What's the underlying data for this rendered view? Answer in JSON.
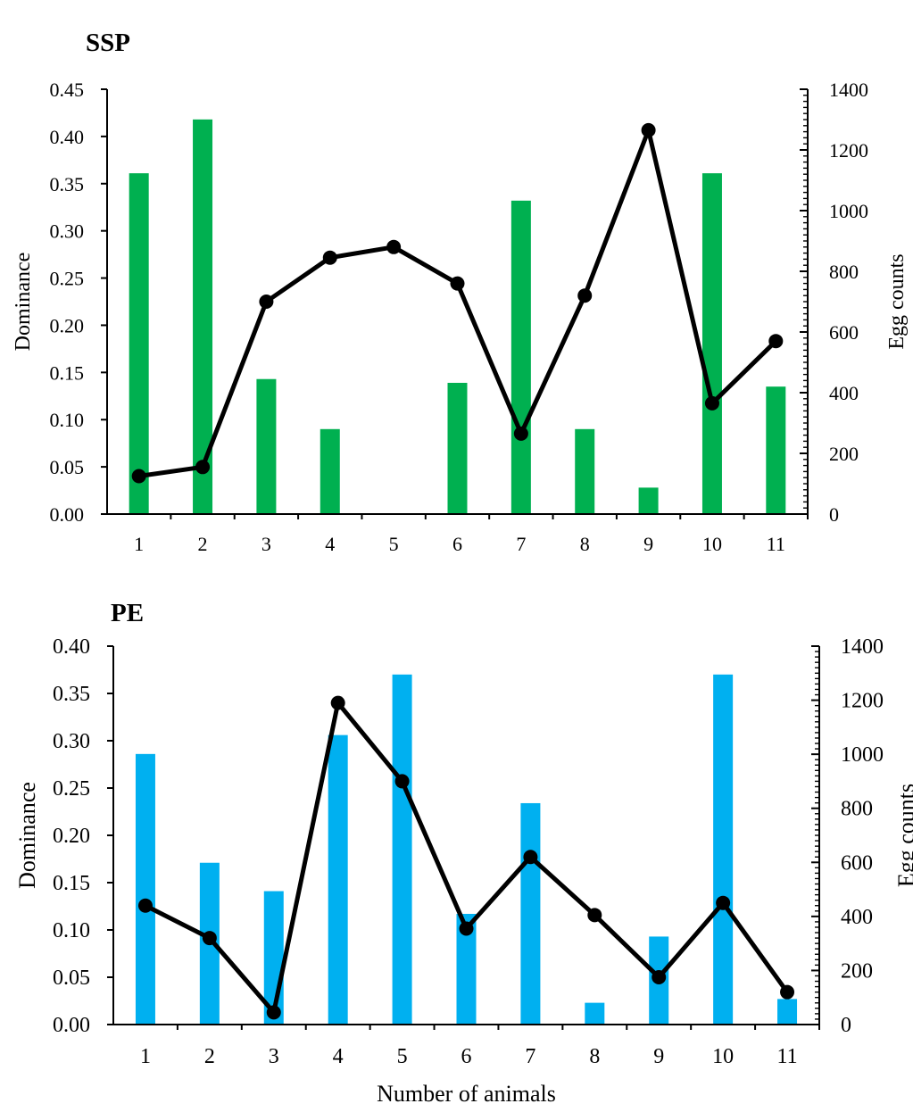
{
  "chart_data": [
    {
      "type": "bar+line",
      "title": "SSP",
      "xlabel": "",
      "ylabel": "Dominance",
      "y2label": "Egg counts",
      "categories": [
        "1",
        "2",
        "3",
        "4",
        "5",
        "6",
        "7",
        "8",
        "9",
        "10",
        "11"
      ],
      "ylim": [
        0,
        0.45
      ],
      "yticks": [
        "0.00",
        "0.05",
        "0.10",
        "0.15",
        "0.20",
        "0.25",
        "0.30",
        "0.35",
        "0.40",
        "0.45"
      ],
      "y2lim": [
        0,
        1400
      ],
      "y2ticks": [
        "0",
        "200",
        "400",
        "600",
        "800",
        "1000",
        "1200",
        "1400"
      ],
      "series": [
        {
          "name": "Dominance",
          "kind": "bar",
          "axis": "left",
          "color": "#00b050",
          "values": [
            0.361,
            0.418,
            0.143,
            0.09,
            0.0,
            0.139,
            0.332,
            0.09,
            0.028,
            0.361,
            0.135
          ]
        },
        {
          "name": "Egg counts",
          "kind": "line",
          "axis": "right",
          "color": "#000000",
          "values": [
            125,
            155,
            700,
            845,
            880,
            760,
            265,
            720,
            1265,
            365,
            570
          ]
        }
      ]
    },
    {
      "type": "bar+line",
      "title": "PE",
      "xlabel": "Number of animals",
      "ylabel": "Dominance",
      "y2label": "Egg counts",
      "categories": [
        "1",
        "2",
        "3",
        "4",
        "5",
        "6",
        "7",
        "8",
        "9",
        "10",
        "11"
      ],
      "ylim": [
        0,
        0.4
      ],
      "yticks": [
        "0.00",
        "0.05",
        "0.10",
        "0.15",
        "0.20",
        "0.25",
        "0.30",
        "0.35",
        "0.40"
      ],
      "y2lim": [
        0,
        1400
      ],
      "y2ticks": [
        "0",
        "200",
        "400",
        "600",
        "800",
        "1000",
        "1200",
        "1400"
      ],
      "series": [
        {
          "name": "Dominance",
          "kind": "bar",
          "axis": "left",
          "color": "#00b0f0",
          "values": [
            0.286,
            0.171,
            0.141,
            0.306,
            0.37,
            0.117,
            0.234,
            0.023,
            0.093,
            0.37,
            0.027
          ]
        },
        {
          "name": "Egg counts",
          "kind": "line",
          "axis": "right",
          "color": "#000000",
          "values": [
            440,
            320,
            45,
            1190,
            900,
            355,
            620,
            405,
            175,
            450,
            120
          ]
        }
      ]
    }
  ]
}
